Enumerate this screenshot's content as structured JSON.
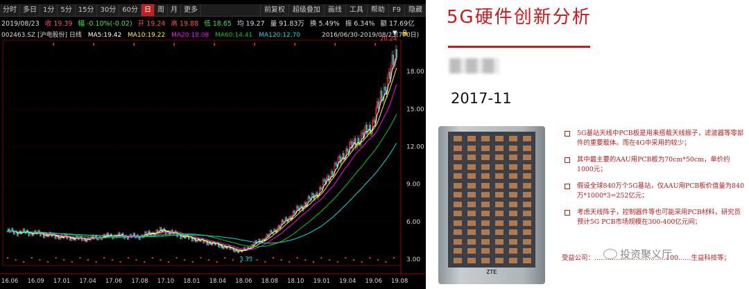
{
  "toolbar": {
    "periods": [
      "分时",
      "多日",
      "1分",
      "5分",
      "15分",
      "30分",
      "60分",
      "日",
      "周",
      "月",
      "更多"
    ],
    "active": "日",
    "right": [
      "前复权",
      "超级叠加",
      "画线",
      "工具",
      "帮助",
      "F9",
      "隐藏"
    ]
  },
  "quote": {
    "date": "2019/08/23",
    "close": "收 19.39",
    "change": "幅 -0.10%(-0.02)",
    "open": "开 19.24",
    "high": "高 19.88",
    "low": "低 18.65",
    "avg": "均 19.27",
    "volume": "量 91.83万",
    "turnover": "换 5.49%",
    "amplitude": "振 6.34%",
    "amount": "额 17.69亿"
  },
  "ma_line": {
    "code": "002463.SZ [沪电股份] 日线",
    "ma5": "MA5:19.42",
    "ma10": "MA10:19.22",
    "ma20": "MA20:18.08",
    "ma60": "MA60:14.41",
    "ma120": "MA120:12.70",
    "range": "2016/06/30-2019/08/23(770日)"
  },
  "colors": {
    "ma5": "#ffffff",
    "ma10": "#ffff00",
    "ma20": "#ff00ff",
    "ma60": "#00d000",
    "ma120": "#00e0e0",
    "up": "#ff3030",
    "down": "#00d8d8"
  },
  "chart_data": {
    "type": "line",
    "title": "002463.SZ [沪电股份] 日线",
    "x": [
      "16.06",
      "16.09",
      "17.01",
      "17.04",
      "17.06",
      "17.08",
      "17.10",
      "18.01",
      "18.04",
      "18.06",
      "18.08",
      "18.10",
      "19.01",
      "19.04",
      "19.06",
      "19.08"
    ],
    "price": [
      5.2,
      5.1,
      4.8,
      4.6,
      4.9,
      4.8,
      5.3,
      4.7,
      4.2,
      3.6,
      4.8,
      6.6,
      8.4,
      11.5,
      13.5,
      19.4
    ],
    "ylim": [
      2.5,
      20.5
    ],
    "yticks": [
      "3.00",
      "6.00",
      "9.00",
      "12.00",
      "15.00",
      "18.00"
    ],
    "annotations": [
      "20.24",
      "3.33"
    ]
  },
  "slide": {
    "title": "5G硬件创新分析",
    "date": "2017-11",
    "board_logo": "ZTE",
    "bullets": [
      "5G基站天线中PCB板是用来搭载天线振子，滤波器等零部件的重要载体。而在4G中采用的较少；",
      "其中最主要的AAU用PCB板为70cm*50cm，单价约1000元；",
      "假设全球840万个5G基站，仅AAU用PCB板价值量为840万*1000*3=252亿元；",
      "考虑天线阵子，控制器件等也可能采用PCB材料，研究员预计5G PCB市场规模在300-400亿元间；"
    ],
    "footer": "受益公司：……………………………100……生益科技等；",
    "watermark": "投资聚义厅"
  }
}
